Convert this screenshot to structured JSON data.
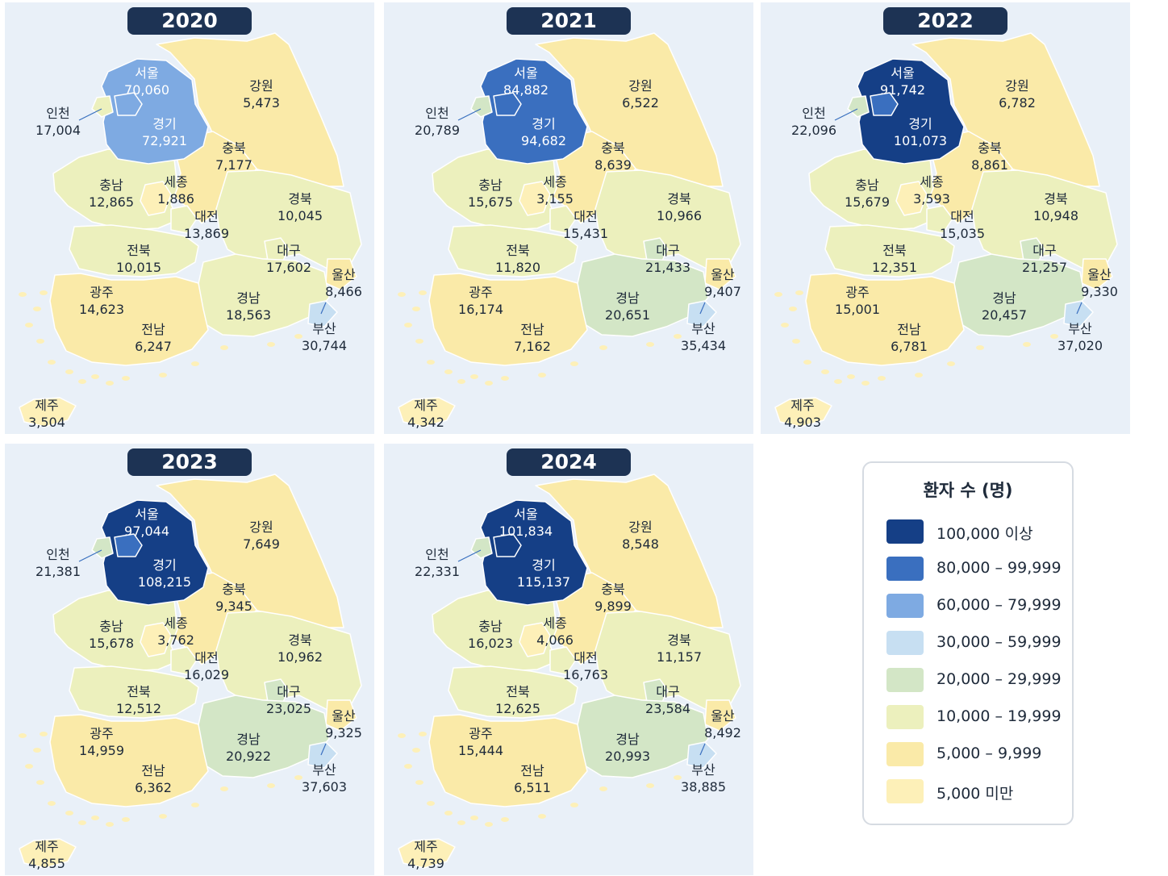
{
  "legend": {
    "title": "환자 수 (명)",
    "items": [
      {
        "label": "100,000 이상",
        "color": "#153f86"
      },
      {
        "label": "80,000 – 99,999",
        "color": "#3a6fbf"
      },
      {
        "label": "60,000 – 79,999",
        "color": "#7eaae2"
      },
      {
        "label": "30,000 – 59,999",
        "color": "#c7dff2"
      },
      {
        "label": "20,000 – 29,999",
        "color": "#d3e6c6"
      },
      {
        "label": "10,000 – 19,999",
        "color": "#ecf0bd"
      },
      {
        "label": "5,000 – 9,999",
        "color": "#faeaa8"
      },
      {
        "label": "5,000 미만",
        "color": "#fdf0b8"
      }
    ]
  },
  "maps": [
    {
      "year": "2020",
      "regions": [
        {
          "name": "서울",
          "value": "70,060"
        },
        {
          "name": "인천",
          "value": "17,004"
        },
        {
          "name": "경기",
          "value": "72,921"
        },
        {
          "name": "강원",
          "value": "5,473"
        },
        {
          "name": "충북",
          "value": "7,177"
        },
        {
          "name": "충남",
          "value": "12,865"
        },
        {
          "name": "세종",
          "value": "1,886"
        },
        {
          "name": "대전",
          "value": "13,869"
        },
        {
          "name": "경북",
          "value": "10,045"
        },
        {
          "name": "전북",
          "value": "10,015"
        },
        {
          "name": "대구",
          "value": "17,602"
        },
        {
          "name": "울산",
          "value": "8,466"
        },
        {
          "name": "광주",
          "value": "14,623"
        },
        {
          "name": "경남",
          "value": "18,563"
        },
        {
          "name": "전남",
          "value": "6,247"
        },
        {
          "name": "부산",
          "value": "30,744"
        },
        {
          "name": "제주",
          "value": "3,504"
        }
      ]
    },
    {
      "year": "2021",
      "regions": [
        {
          "name": "서울",
          "value": "84,882"
        },
        {
          "name": "인천",
          "value": "20,789"
        },
        {
          "name": "경기",
          "value": "94,682"
        },
        {
          "name": "강원",
          "value": "6,522"
        },
        {
          "name": "충북",
          "value": "8,639"
        },
        {
          "name": "충남",
          "value": "15,675"
        },
        {
          "name": "세종",
          "value": "3,155"
        },
        {
          "name": "대전",
          "value": "15,431"
        },
        {
          "name": "경북",
          "value": "10,966"
        },
        {
          "name": "전북",
          "value": "11,820"
        },
        {
          "name": "대구",
          "value": "21,433"
        },
        {
          "name": "울산",
          "value": "9,407"
        },
        {
          "name": "광주",
          "value": "16,174"
        },
        {
          "name": "경남",
          "value": "20,651"
        },
        {
          "name": "전남",
          "value": "7,162"
        },
        {
          "name": "부산",
          "value": "35,434"
        },
        {
          "name": "제주",
          "value": "4,342"
        }
      ]
    },
    {
      "year": "2022",
      "regions": [
        {
          "name": "서울",
          "value": "91,742"
        },
        {
          "name": "인천",
          "value": "22,096"
        },
        {
          "name": "경기",
          "value": "101,073"
        },
        {
          "name": "강원",
          "value": "6,782"
        },
        {
          "name": "충북",
          "value": "8,861"
        },
        {
          "name": "충남",
          "value": "15,679"
        },
        {
          "name": "세종",
          "value": "3,593"
        },
        {
          "name": "대전",
          "value": "15,035"
        },
        {
          "name": "경북",
          "value": "10,948"
        },
        {
          "name": "전북",
          "value": "12,351"
        },
        {
          "name": "대구",
          "value": "21,257"
        },
        {
          "name": "울산",
          "value": "9,330"
        },
        {
          "name": "광주",
          "value": "15,001"
        },
        {
          "name": "경남",
          "value": "20,457"
        },
        {
          "name": "전남",
          "value": "6,781"
        },
        {
          "name": "부산",
          "value": "37,020"
        },
        {
          "name": "제주",
          "value": "4,903"
        }
      ]
    },
    {
      "year": "2023",
      "regions": [
        {
          "name": "서울",
          "value": "97,044"
        },
        {
          "name": "인천",
          "value": "21,381"
        },
        {
          "name": "경기",
          "value": "108,215"
        },
        {
          "name": "강원",
          "value": "7,649"
        },
        {
          "name": "충북",
          "value": "9,345"
        },
        {
          "name": "충남",
          "value": "15,678"
        },
        {
          "name": "세종",
          "value": "3,762"
        },
        {
          "name": "대전",
          "value": "16,029"
        },
        {
          "name": "경북",
          "value": "10,962"
        },
        {
          "name": "전북",
          "value": "12,512"
        },
        {
          "name": "대구",
          "value": "23,025"
        },
        {
          "name": "울산",
          "value": "9,325"
        },
        {
          "name": "광주",
          "value": "14,959"
        },
        {
          "name": "경남",
          "value": "20,922"
        },
        {
          "name": "전남",
          "value": "6,362"
        },
        {
          "name": "부산",
          "value": "37,603"
        },
        {
          "name": "제주",
          "value": "4,855"
        }
      ]
    },
    {
      "year": "2024",
      "regions": [
        {
          "name": "서울",
          "value": "101,834"
        },
        {
          "name": "인천",
          "value": "22,331"
        },
        {
          "name": "경기",
          "value": "115,137"
        },
        {
          "name": "강원",
          "value": "8,548"
        },
        {
          "name": "충북",
          "value": "9,899"
        },
        {
          "name": "충남",
          "value": "16,023"
        },
        {
          "name": "세종",
          "value": "4,066"
        },
        {
          "name": "대전",
          "value": "16,763"
        },
        {
          "name": "경북",
          "value": "11,157"
        },
        {
          "name": "전북",
          "value": "12,625"
        },
        {
          "name": "대구",
          "value": "23,584"
        },
        {
          "name": "울산",
          "value": "8,492"
        },
        {
          "name": "광주",
          "value": "15,444"
        },
        {
          "name": "경남",
          "value": "20,993"
        },
        {
          "name": "전남",
          "value": "6,511"
        },
        {
          "name": "부산",
          "value": "38,885"
        },
        {
          "name": "제주",
          "value": "4,739"
        }
      ]
    }
  ]
}
